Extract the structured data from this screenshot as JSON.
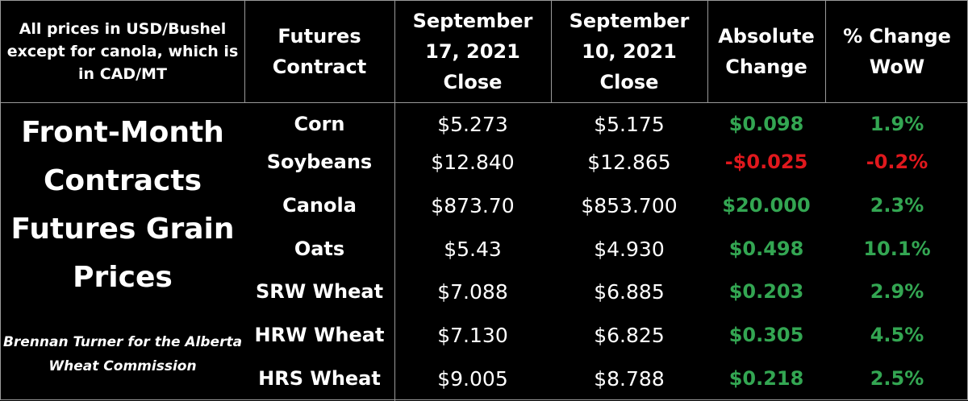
{
  "note": "All prices in USD/Bushel except for canola, which is in CAD/MT",
  "headers": {
    "contract": "Futures\nContract",
    "current": "September\n17, 2021\nClose",
    "previous": "September\n10, 2021\nClose",
    "absolute": "Absolute\nChange",
    "percent": "% Change\nWoW"
  },
  "side_title": "Front-Month\nContracts\nFutures Grain\nPrices",
  "credit": "Brennan Turner for the Alberta\nWheat Commission",
  "colors": {
    "background": "#000000",
    "text": "#ffffff",
    "positive": "#33a652",
    "negative": "#e0181d",
    "grid": "#9a9a9a"
  },
  "rows": [
    {
      "contract": "Corn",
      "current": "$5.273",
      "previous": "$5.175",
      "abs_change": "$0.098",
      "pct_change": "1.9%",
      "direction": "up"
    },
    {
      "contract": "Soybeans",
      "current": "$12.840",
      "previous": "$12.865",
      "abs_change": "-$0.025",
      "pct_change": "-0.2%",
      "direction": "down"
    },
    {
      "contract": "Canola",
      "current": "$873.70",
      "previous": "$853.700",
      "abs_change": "$20.000",
      "pct_change": "2.3%",
      "direction": "up"
    },
    {
      "contract": "Oats",
      "current": "$5.43",
      "previous": "$4.930",
      "abs_change": "$0.498",
      "pct_change": "10.1%",
      "direction": "up"
    },
    {
      "contract": "SRW Wheat",
      "current": "$7.088",
      "previous": "$6.885",
      "abs_change": "$0.203",
      "pct_change": "2.9%",
      "direction": "up"
    },
    {
      "contract": "HRW Wheat",
      "current": "$7.130",
      "previous": "$6.825",
      "abs_change": "$0.305",
      "pct_change": "4.5%",
      "direction": "up"
    },
    {
      "contract": "HRS Wheat",
      "current": "$9.005",
      "previous": "$8.788",
      "abs_change": "$0.218",
      "pct_change": "2.5%",
      "direction": "up"
    }
  ]
}
